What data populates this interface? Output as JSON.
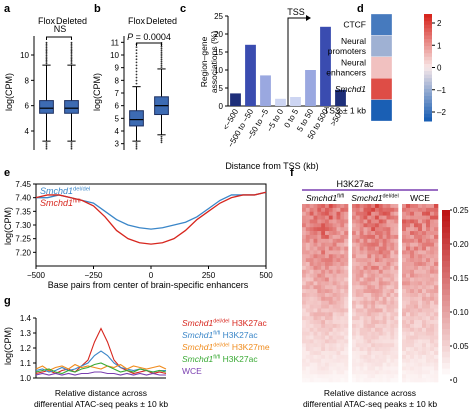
{
  "panel_labels": {
    "a": "a",
    "b": "b",
    "c": "c",
    "d": "d",
    "e": "e",
    "f": "f",
    "g": "g"
  },
  "colors": {
    "box_fill": "#3d6bb3",
    "bar_dark": "#1e2f7a",
    "bar_mid": "#3a4cb0",
    "bar_light": "#9aa8e0",
    "bar_pale": "#cdd5f2",
    "heat_low": "#1a5fb4",
    "heat_high": "#d7261e",
    "line_deleted": "#3a86c8",
    "line_flox": "#d7261e",
    "g_red": "#d7261e",
    "g_blue": "#3a86c8",
    "g_orange": "#f08c1e",
    "g_green": "#3aaa35",
    "g_purple": "#7a3fb0"
  },
  "chart_data": [
    {
      "id": "a",
      "type": "box",
      "categories": [
        "Flox",
        "Deleted"
      ],
      "ylabel": "log(CPM)",
      "ylim": [
        2.5,
        11.5
      ],
      "yticks": [
        "4",
        "6",
        "8",
        "10"
      ],
      "annotation": "NS",
      "boxes": [
        {
          "name": "Flox",
          "q1": 5.4,
          "median": 5.8,
          "q3": 6.4,
          "whisker_low": 3.2,
          "whisker_high": 9.2
        },
        {
          "name": "Deleted",
          "q1": 5.4,
          "median": 5.8,
          "q3": 6.4,
          "whisker_low": 3.2,
          "whisker_high": 9.2
        }
      ]
    },
    {
      "id": "b",
      "type": "box",
      "categories": [
        "Flox",
        "Deleted"
      ],
      "ylabel": "log(CPM)",
      "ylim": [
        2.5,
        11.5
      ],
      "yticks": [
        "3",
        "4",
        "5",
        "6",
        "7",
        "8",
        "9",
        "10",
        "11"
      ],
      "annotation": "P = 0.0004",
      "boxes": [
        {
          "name": "Flox",
          "q1": 4.4,
          "median": 4.9,
          "q3": 5.6,
          "whisker_low": 3.2,
          "whisker_high": 7.5
        },
        {
          "name": "Deleted",
          "q1": 5.3,
          "median": 6.0,
          "q3": 6.7,
          "whisker_low": 3.7,
          "whisker_high": 8.9
        }
      ]
    },
    {
      "id": "c",
      "type": "bar",
      "categories": [
        "<−500",
        "−500 to −50",
        "−50 to −5",
        "−5 to 0",
        "0 to 5",
        "5 to 50",
        "50 to 500",
        ">500"
      ],
      "values": [
        3.5,
        17,
        8.5,
        2,
        2.5,
        10,
        22,
        4.5
      ],
      "ylabel": "Region–gene associations (%)",
      "xlabel": "Distance from TSS (kb)",
      "ylim": [
        0,
        25
      ],
      "yticks": [
        "0",
        "5",
        "10",
        "15",
        "20",
        "25"
      ],
      "annotation": "TSS"
    },
    {
      "id": "d",
      "type": "heatmap",
      "rows": [
        "CTCF",
        "Neural promoters",
        "Neural enhancers",
        "Smchd1",
        "TSS ± 1 kb"
      ],
      "values": [
        -2,
        -1,
        0.5,
        2,
        -2.5
      ],
      "scale_ticks": [
        "2",
        "1",
        "0",
        "–1",
        "–2"
      ]
    },
    {
      "id": "e",
      "type": "line",
      "xlabel": "Base pairs from center of brain-specific enhancers",
      "ylabel": "log(CPM)",
      "xlim": [
        -500,
        500
      ],
      "ylim": [
        7.15,
        7.45
      ],
      "xticks": [
        "−500",
        "−250",
        "0",
        "250",
        "500"
      ],
      "yticks": [
        "7.20",
        "7.25",
        "7.30",
        "7.35",
        "7.40",
        "7.45"
      ],
      "x": [
        -500,
        -450,
        -400,
        -350,
        -300,
        -250,
        -200,
        -150,
        -100,
        -50,
        0,
        50,
        100,
        150,
        200,
        250,
        300,
        350,
        400,
        450,
        500
      ],
      "series": [
        {
          "name": "Smchd1 del/del",
          "values": [
            7.4,
            7.4,
            7.41,
            7.4,
            7.39,
            7.38,
            7.35,
            7.32,
            7.3,
            7.29,
            7.285,
            7.29,
            7.3,
            7.31,
            7.33,
            7.36,
            7.39,
            7.41,
            7.41,
            7.41,
            7.42
          ]
        },
        {
          "name": "Smchd1 fl/fl",
          "values": [
            7.4,
            7.41,
            7.41,
            7.4,
            7.39,
            7.37,
            7.33,
            7.28,
            7.25,
            7.235,
            7.23,
            7.235,
            7.25,
            7.28,
            7.32,
            7.35,
            7.38,
            7.4,
            7.41,
            7.41,
            7.42
          ]
        }
      ]
    },
    {
      "id": "f",
      "type": "heatmap",
      "title": "H3K27ac",
      "columns": [
        "Smchd1 fl/fl",
        "Smchd1 del/del",
        "WCE"
      ],
      "xlabel": "Relative distance across differential ATAC-seq peaks ± 10 kb",
      "scale_ticks": [
        "0.25",
        "0.20",
        "0.15",
        "0.10",
        "0.05",
        "0"
      ]
    },
    {
      "id": "g",
      "type": "line",
      "ylabel": "log(CPM)",
      "xlabel": "Relative distance across differential ATAC-seq peaks ± 10 kb",
      "ylim": [
        1.0,
        1.4
      ],
      "yticks": [
        "1.0",
        "1.1",
        "1.2",
        "1.3",
        "1.4"
      ],
      "x": [
        -10,
        -9,
        -8,
        -7,
        -6,
        -5,
        -4,
        -3,
        -2,
        -1,
        0,
        1,
        2,
        3,
        4,
        5,
        6,
        7,
        8,
        9,
        10
      ],
      "series": [
        {
          "name": "Smchd1 del/del H3K27ac",
          "values": [
            1.03,
            1.04,
            1.05,
            1.03,
            1.05,
            1.06,
            1.04,
            1.08,
            1.12,
            1.24,
            1.33,
            1.24,
            1.12,
            1.07,
            1.05,
            1.03,
            1.04,
            1.05,
            1.03,
            1.04,
            1.03
          ]
        },
        {
          "name": "Smchd1 fl/fl H3K27ac",
          "values": [
            1.05,
            1.06,
            1.04,
            1.05,
            1.07,
            1.05,
            1.06,
            1.08,
            1.1,
            1.15,
            1.18,
            1.15,
            1.1,
            1.07,
            1.06,
            1.05,
            1.06,
            1.05,
            1.04,
            1.05,
            1.05
          ]
        },
        {
          "name": "Smchd1 del/del H3K27me",
          "values": [
            1.06,
            1.08,
            1.05,
            1.07,
            1.08,
            1.06,
            1.09,
            1.07,
            1.08,
            1.07,
            1.06,
            1.08,
            1.07,
            1.09,
            1.06,
            1.08,
            1.07,
            1.06,
            1.07,
            1.08,
            1.06
          ]
        },
        {
          "name": "Smchd1 fl/fl H3K27ac",
          "values": [
            1.04,
            1.05,
            1.06,
            1.04,
            1.03,
            1.05,
            1.04,
            1.06,
            1.07,
            1.09,
            1.1,
            1.08,
            1.06,
            1.04,
            1.05,
            1.04,
            1.06,
            1.05,
            1.04,
            1.05,
            1.04
          ]
        },
        {
          "name": "WCE",
          "values": [
            1.02,
            1.03,
            1.02,
            1.03,
            1.02,
            1.03,
            1.02,
            1.03,
            1.03,
            1.04,
            1.04,
            1.03,
            1.03,
            1.02,
            1.03,
            1.02,
            1.03,
            1.02,
            1.03,
            1.02,
            1.02
          ]
        }
      ]
    }
  ],
  "legend_e": {
    "deleted_gene": "Smchd1",
    "deleted_sup": "del/del",
    "flox_gene": "Smchd1",
    "flox_sup": "fl/fl"
  },
  "legend_g": [
    {
      "gene": "Smchd1",
      "sup": "del/del",
      "mark": "H3K27ac"
    },
    {
      "gene": "Smchd1",
      "sup": "fl/fl",
      "mark": "H3K27ac"
    },
    {
      "gene": "Smchd1",
      "sup": "del/del",
      "mark": "H3K27me"
    },
    {
      "gene": "Smchd1",
      "sup": "fl/fl",
      "mark": "H3K27ac"
    },
    {
      "gene": "",
      "sup": "",
      "mark": "WCE"
    }
  ],
  "f_columns": [
    {
      "gene": "Smchd1",
      "sup": "fl/fl"
    },
    {
      "gene": "Smchd1",
      "sup": "del/del"
    },
    {
      "gene": "WCE",
      "sup": ""
    }
  ]
}
